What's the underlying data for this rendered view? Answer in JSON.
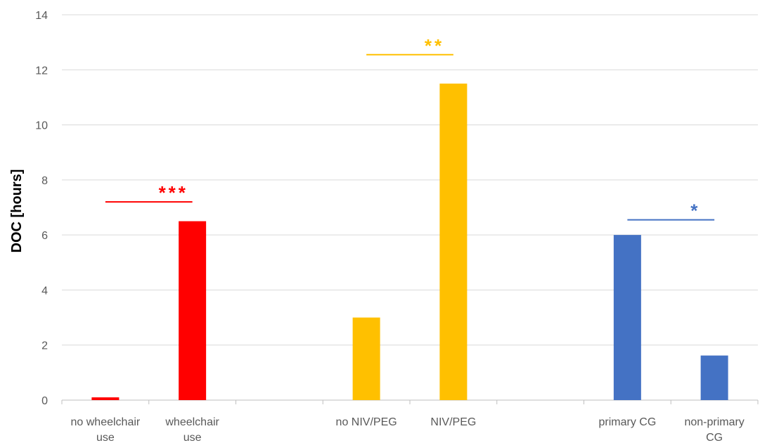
{
  "chart_data": {
    "type": "bar",
    "ylabel": "DOC [hours]",
    "ylim": [
      0,
      14
    ],
    "yticks": [
      0,
      2,
      4,
      6,
      8,
      10,
      12,
      14
    ],
    "grid": true,
    "categories": [
      {
        "lines": [
          "no wheelchair",
          "use"
        ],
        "value": 0.1,
        "color": "#ff0000"
      },
      {
        "lines": [
          "wheelchair",
          "use"
        ],
        "value": 6.5,
        "color": "#ff0000"
      },
      {
        "lines": [],
        "value": null,
        "color": null
      },
      {
        "lines": [
          "no NIV/PEG"
        ],
        "value": 3.0,
        "color": "#ffc000"
      },
      {
        "lines": [
          "NIV/PEG"
        ],
        "value": 11.5,
        "color": "#ffc000"
      },
      {
        "lines": [],
        "value": null,
        "color": null
      },
      {
        "lines": [
          "primary CG"
        ],
        "value": 6.0,
        "color": "#4472c4"
      },
      {
        "lines": [
          "non-primary",
          "CG"
        ],
        "value": 1.62,
        "color": "#4472c4"
      }
    ],
    "significance": [
      {
        "from": 0,
        "to": 1,
        "y": 7.2,
        "label": "***",
        "color": "#ff0000"
      },
      {
        "from": 3,
        "to": 4,
        "y": 12.55,
        "label": "**",
        "color": "#ffc000"
      },
      {
        "from": 6,
        "to": 7,
        "y": 6.55,
        "label": "*",
        "color": "#4472c4"
      }
    ]
  }
}
